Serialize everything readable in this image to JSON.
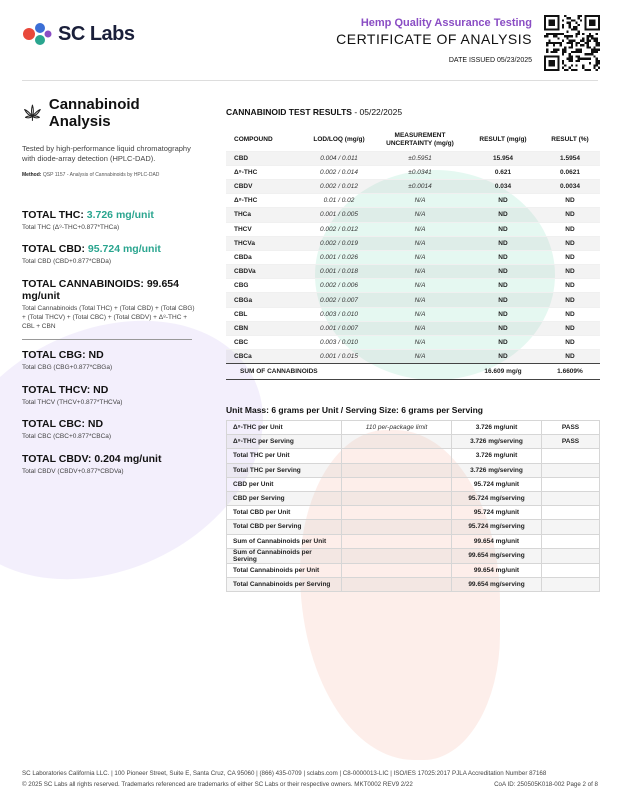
{
  "header": {
    "logo_text": "SC Labs",
    "subtitle": "Hemp Quality Assurance Testing",
    "title": "CERTIFICATE OF ANALYSIS",
    "date_issued": "DATE ISSUED 05/23/2025"
  },
  "left_panel": {
    "title": "Cannabinoid Analysis",
    "description": "Tested by high-performance liquid chromatography with diode-array detection (HPLC-DAD).",
    "method_label": "Method:",
    "method_text": "QSP 1157 - Analysis of Cannabinoids by HPLC-DAD",
    "totals": [
      {
        "label": "TOTAL THC:",
        "value": "3.726 mg/unit",
        "formula": "Total THC (Δ⁹-THC+0.877*THCa)"
      },
      {
        "label": "TOTAL CBD:",
        "value": "95.724 mg/unit",
        "formula": "Total CBD (CBD+0.877*CBDa)"
      },
      {
        "label": "TOTAL CANNABINOIDS:",
        "value": "99.654 mg/unit",
        "formula": "Total Cannabinoids (Total THC) + (Total CBD) + (Total CBG) + (Total THCV) + (Total CBC) + (Total CBDV) + Δ⁸-THC + CBL + CBN"
      },
      {
        "label": "TOTAL CBG:",
        "value": "ND",
        "formula": "Total CBG (CBG+0.877*CBGa)"
      },
      {
        "label": "TOTAL THCV:",
        "value": "ND",
        "formula": "Total THCV (THCV+0.877*THCVa)"
      },
      {
        "label": "TOTAL CBC:",
        "value": "ND",
        "formula": "Total CBC (CBC+0.877*CBCa)"
      },
      {
        "label": "TOTAL CBDV:",
        "value": "0.204 mg/unit",
        "formula": "Total CBDV (CBDV+0.877*CBDVa)"
      }
    ]
  },
  "results": {
    "title_bold": "CANNABINOID TEST RESULTS",
    "title_date": "- 05/22/2025",
    "columns": [
      "COMPOUND",
      "LOD/LOQ (mg/g)",
      "MEASUREMENT UNCERTAINTY (mg/g)",
      "RESULT (mg/g)",
      "RESULT (%)"
    ],
    "rows": [
      [
        "CBD",
        "0.004 / 0.011",
        "±0.5951",
        "15.954",
        "1.5954"
      ],
      [
        "Δ⁹-THC",
        "0.002 / 0.014",
        "±0.0341",
        "0.621",
        "0.0621"
      ],
      [
        "CBDV",
        "0.002 / 0.012",
        "±0.0014",
        "0.034",
        "0.0034"
      ],
      [
        "Δ⁸-THC",
        "0.01 / 0.02",
        "N/A",
        "ND",
        "ND"
      ],
      [
        "THCa",
        "0.001 / 0.005",
        "N/A",
        "ND",
        "ND"
      ],
      [
        "THCV",
        "0.002 / 0.012",
        "N/A",
        "ND",
        "ND"
      ],
      [
        "THCVa",
        "0.002 / 0.019",
        "N/A",
        "ND",
        "ND"
      ],
      [
        "CBDa",
        "0.001 / 0.026",
        "N/A",
        "ND",
        "ND"
      ],
      [
        "CBDVa",
        "0.001 / 0.018",
        "N/A",
        "ND",
        "ND"
      ],
      [
        "CBG",
        "0.002 / 0.006",
        "N/A",
        "ND",
        "ND"
      ],
      [
        "CBGa",
        "0.002 / 0.007",
        "N/A",
        "ND",
        "ND"
      ],
      [
        "CBL",
        "0.003 / 0.010",
        "N/A",
        "ND",
        "ND"
      ],
      [
        "CBN",
        "0.001 / 0.007",
        "N/A",
        "ND",
        "ND"
      ],
      [
        "CBC",
        "0.003 / 0.010",
        "N/A",
        "ND",
        "ND"
      ],
      [
        "CBCa",
        "0.001 / 0.015",
        "N/A",
        "ND",
        "ND"
      ]
    ],
    "sum_label": "SUM OF CANNABINOIDS",
    "sum_mg": "16.609 mg/g",
    "sum_pct": "1.6609%"
  },
  "unit_mass": {
    "title": "Unit Mass: 6 grams per Unit / Serving Size: 6 grams per Serving",
    "rows": [
      [
        "Δ⁹-THC per Unit",
        "110 per-package limit",
        "3.726 mg/unit",
        "PASS"
      ],
      [
        "Δ⁹-THC per Serving",
        "",
        "3.726 mg/serving",
        "PASS"
      ],
      [
        "Total THC per Unit",
        "",
        "3.726 mg/unit",
        ""
      ],
      [
        "Total THC per Serving",
        "",
        "3.726 mg/serving",
        ""
      ],
      [
        "CBD per Unit",
        "",
        "95.724 mg/unit",
        ""
      ],
      [
        "CBD per Serving",
        "",
        "95.724 mg/serving",
        ""
      ],
      [
        "Total CBD per Unit",
        "",
        "95.724 mg/unit",
        ""
      ],
      [
        "Total CBD per Serving",
        "",
        "95.724 mg/serving",
        ""
      ],
      [
        "Sum of Cannabinoids per Unit",
        "",
        "99.654 mg/unit",
        ""
      ],
      [
        "Sum of Cannabinoids per Serving",
        "",
        "99.654 mg/serving",
        ""
      ],
      [
        "Total Cannabinoids per Unit",
        "",
        "99.654 mg/unit",
        ""
      ],
      [
        "Total Cannabinoids per Serving",
        "",
        "99.654 mg/serving",
        ""
      ]
    ]
  },
  "footer": {
    "address": "SC Laboratories California LLC. | 100 Pioneer Street, Suite E, Santa Cruz, CA 95060 | (866) 435-0709 | sclabs.com | C8-0000013-LIC | ISO/IES 17025:2017 PJLA Accreditation Number 87168",
    "copyright": "© 2025 SC Labs all rights reserved. Trademarks referenced are trademarks of either SC Labs or their respective owners. MKT0002 REV9 2/22",
    "coa_id": "CoA ID: 250505K018-002",
    "page": "Page 2 of 8"
  },
  "colors": {
    "accent_purple": "#8a4dc4",
    "accent_teal": "#2aa58f",
    "logo_red": "#e8483b",
    "logo_blue": "#3b6fd6"
  }
}
